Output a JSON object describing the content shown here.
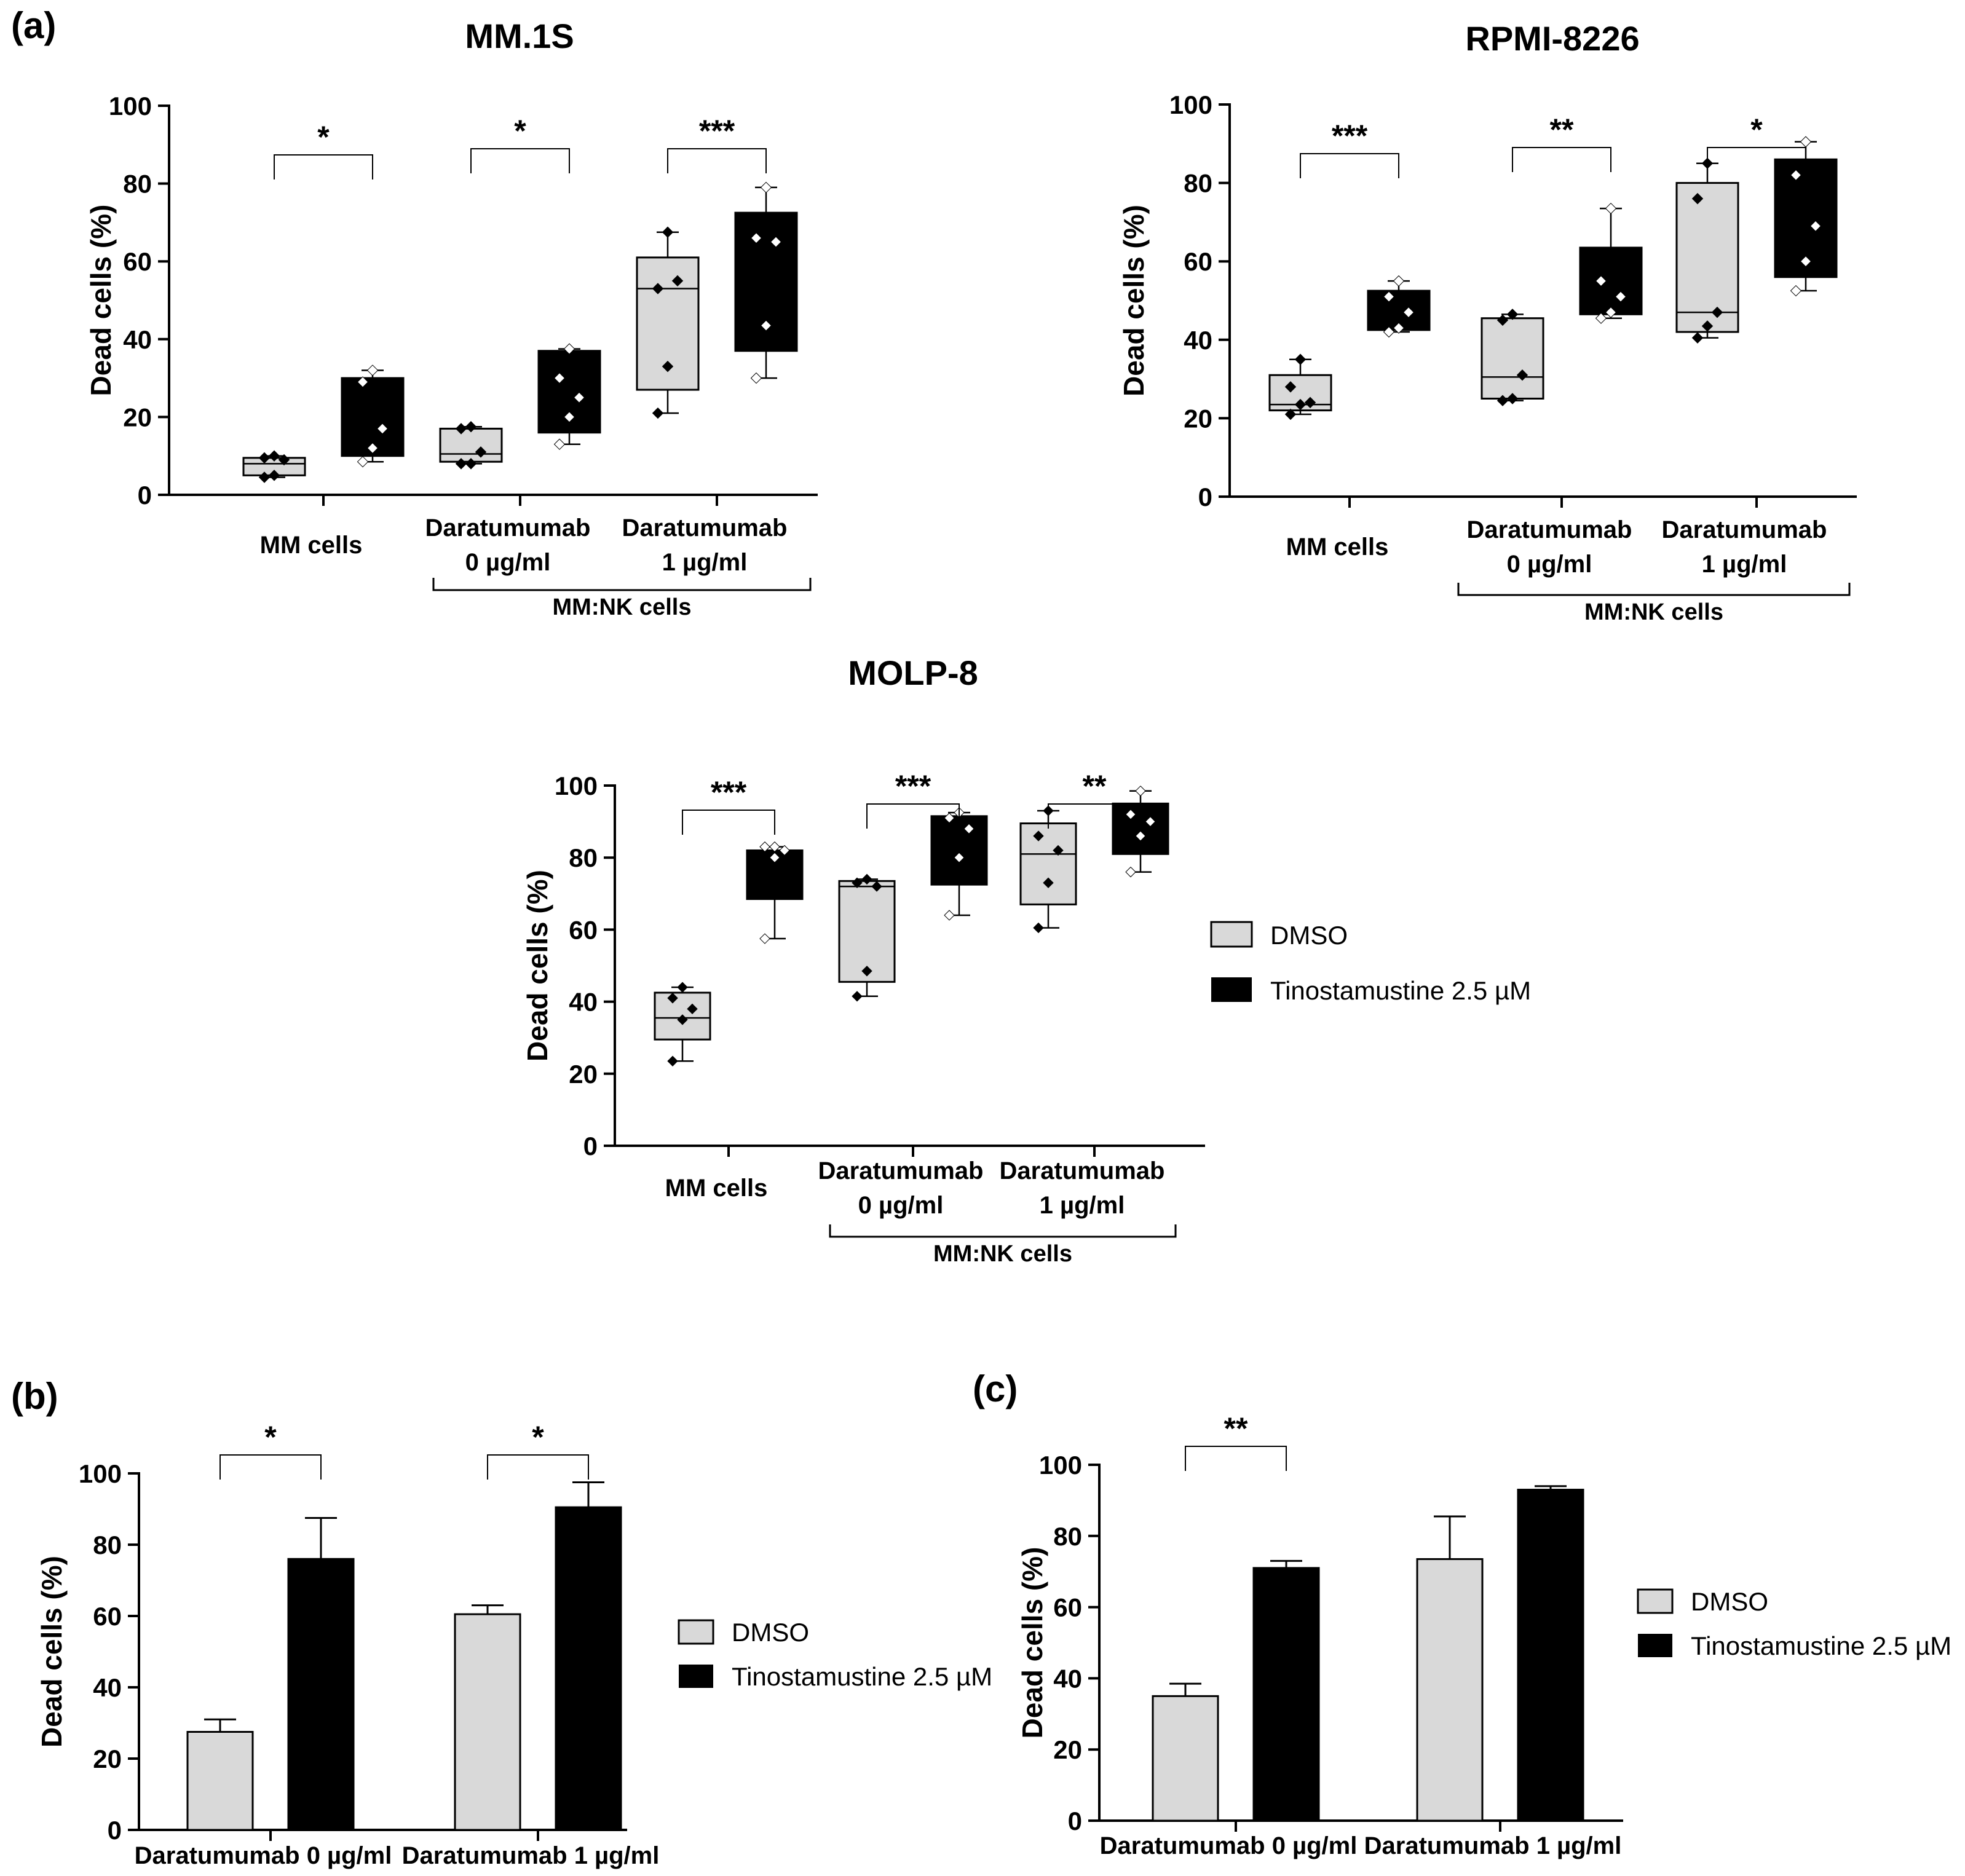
{
  "colors": {
    "dmso": "#d9d9d9",
    "tino": "#000000",
    "axis": "#000000"
  },
  "panel_labels": {
    "a": "(a)",
    "b": "(b)",
    "c": "(c)"
  },
  "legend": {
    "dmso": "DMSO",
    "tino": "Tinostamustine 2.5 µM"
  },
  "chart_data": [
    {
      "id": "mm1s",
      "type": "box",
      "panel": "(a)",
      "title": "MM.1S",
      "ylabel": "Dead cells (%)",
      "ylim": [
        0,
        100
      ],
      "yticks": [
        0,
        20,
        40,
        60,
        80,
        100
      ],
      "categories": [
        "MM cells",
        "Daratumumab\n0 µg/ml",
        "Daratumumab\n1 µg/ml"
      ],
      "group_label": "MM:NK cells",
      "group_categories": [
        1,
        2
      ],
      "significance": [
        "*",
        "*",
        "***"
      ],
      "series": [
        {
          "name": "DMSO",
          "boxes": [
            {
              "min": 4.5,
              "q1": 5,
              "median": 8,
              "q3": 9.5,
              "max": 10,
              "points": [
                4.5,
                5,
                9,
                9.5,
                10
              ]
            },
            {
              "min": 8,
              "q1": 8.5,
              "median": 10.5,
              "q3": 17,
              "max": 17.5,
              "points": [
                8,
                8,
                11,
                17,
                17.5
              ]
            },
            {
              "min": 21,
              "q1": 27,
              "median": 53,
              "q3": 61,
              "max": 67.5,
              "points": [
                21,
                33,
                55,
                53,
                67.5
              ]
            }
          ]
        },
        {
          "name": "Tinostamustine 2.5 µM",
          "boxes": [
            {
              "min": 8.5,
              "q1": 10,
              "median": 17,
              "q3": 30,
              "max": 32,
              "points": [
                8.5,
                12,
                17,
                29,
                32
              ]
            },
            {
              "min": 13,
              "q1": 16,
              "median": 25,
              "q3": 37,
              "max": 37.5,
              "points": [
                13,
                20,
                25,
                30,
                37.5
              ]
            },
            {
              "min": 30,
              "q1": 37,
              "median": 52,
              "q3": 72.5,
              "max": 79,
              "points": [
                30,
                43.5,
                65,
                66,
                79
              ]
            }
          ]
        }
      ]
    },
    {
      "id": "rpmi",
      "type": "box",
      "panel": "",
      "title": "RPMI-8226",
      "ylabel": "Dead cells (%)",
      "ylim": [
        0,
        100
      ],
      "yticks": [
        0,
        20,
        40,
        60,
        80,
        100
      ],
      "categories": [
        "MM cells",
        "Daratumumab\n0 µg/ml",
        "Daratumumab\n1 µg/ml"
      ],
      "group_label": "MM:NK cells",
      "group_categories": [
        1,
        2
      ],
      "significance": [
        "***",
        "**",
        "*"
      ],
      "series": [
        {
          "name": "DMSO",
          "boxes": [
            {
              "min": 21,
              "q1": 22,
              "median": 23.5,
              "q3": 31,
              "max": 35,
              "points": [
                21,
                23.5,
                24,
                28,
                35
              ]
            },
            {
              "min": 24.5,
              "q1": 25,
              "median": 30.5,
              "q3": 45.5,
              "max": 46.5,
              "points": [
                24.5,
                25,
                31,
                45,
                46.5
              ]
            },
            {
              "min": 40.5,
              "q1": 42,
              "median": 47,
              "q3": 80,
              "max": 85,
              "points": [
                40.5,
                43.5,
                47,
                76,
                85
              ]
            }
          ]
        },
        {
          "name": "Tinostamustine 2.5 µM",
          "boxes": [
            {
              "min": 42,
              "q1": 42.5,
              "median": 47,
              "q3": 52.5,
              "max": 55,
              "points": [
                42,
                43,
                47,
                51,
                55
              ]
            },
            {
              "min": 45.5,
              "q1": 46.5,
              "median": 51,
              "q3": 63.5,
              "max": 73.5,
              "points": [
                45.5,
                47,
                51,
                55,
                73.5
              ]
            },
            {
              "min": 52.5,
              "q1": 56,
              "median": 70,
              "q3": 86,
              "max": 90.5,
              "points": [
                52.5,
                60,
                69,
                82,
                90.5
              ]
            }
          ]
        }
      ]
    },
    {
      "id": "molp8",
      "type": "box",
      "panel": "",
      "title": "MOLP-8",
      "ylabel": "Dead cells (%)",
      "ylim": [
        0,
        100
      ],
      "yticks": [
        0,
        20,
        40,
        60,
        80,
        100
      ],
      "categories": [
        "MM cells",
        "Daratumumab\n0 µg/ml",
        "Daratumumab\n1 µg/ml"
      ],
      "group_label": "MM:NK cells",
      "group_categories": [
        1,
        2
      ],
      "significance": [
        "***",
        "***",
        "**"
      ],
      "series": [
        {
          "name": "DMSO",
          "boxes": [
            {
              "min": 23.5,
              "q1": 29.5,
              "median": 35.5,
              "q3": 42.5,
              "max": 44,
              "points": [
                23.5,
                35,
                38,
                41,
                44
              ]
            },
            {
              "min": 41.5,
              "q1": 45.5,
              "median": 72,
              "q3": 73.5,
              "max": 74,
              "points": [
                41.5,
                48.5,
                72,
                73,
                74
              ]
            },
            {
              "min": 60.5,
              "q1": 67,
              "median": 81,
              "q3": 89.5,
              "max": 93,
              "points": [
                60.5,
                73,
                82,
                86,
                93
              ]
            }
          ]
        },
        {
          "name": "Tinostamustine 2.5 µM",
          "boxes": [
            {
              "min": 57.5,
              "q1": 68.5,
              "median": 80,
              "q3": 82,
              "max": 83,
              "points": [
                57.5,
                80,
                82,
                83,
                83
              ]
            },
            {
              "min": 64,
              "q1": 72.5,
              "median": 84,
              "q3": 91.5,
              "max": 92.5,
              "points": [
                64,
                80,
                88,
                91,
                92.5
              ]
            },
            {
              "min": 76,
              "q1": 81,
              "median": 89,
              "q3": 95,
              "max": 98.5,
              "points": [
                76,
                86,
                90,
                92,
                98.5
              ]
            }
          ]
        }
      ]
    },
    {
      "id": "b",
      "type": "bar",
      "panel": "(b)",
      "title": "",
      "ylabel": "Dead cells (%)",
      "ylim": [
        0,
        100
      ],
      "yticks": [
        0,
        20,
        40,
        60,
        80,
        100
      ],
      "categories": [
        "Daratumumab 0 µg/ml",
        "Daratumumab 1 µg/ml"
      ],
      "significance": [
        "*",
        "*"
      ],
      "series": [
        {
          "name": "DMSO",
          "values": [
            27.5,
            60.5
          ],
          "errors": [
            3.5,
            2.5
          ]
        },
        {
          "name": "Tinostamustine 2.5 µM",
          "values": [
            76,
            90.5
          ],
          "errors": [
            11.5,
            7
          ]
        }
      ]
    },
    {
      "id": "c",
      "type": "bar",
      "panel": "(c)",
      "title": "",
      "ylabel": "Dead cells (%)",
      "ylim": [
        0,
        100
      ],
      "yticks": [
        0,
        20,
        40,
        60,
        80,
        100
      ],
      "categories": [
        "Daratumumab 0 µg/ml",
        "Daratumumab 1 µg/ml"
      ],
      "significance": [
        "**",
        ""
      ],
      "series": [
        {
          "name": "DMSO",
          "values": [
            35,
            73.5
          ],
          "errors": [
            3.5,
            12
          ]
        },
        {
          "name": "Tinostamustine 2.5 µM",
          "values": [
            71,
            93
          ],
          "errors": [
            2,
            1
          ]
        }
      ]
    }
  ]
}
